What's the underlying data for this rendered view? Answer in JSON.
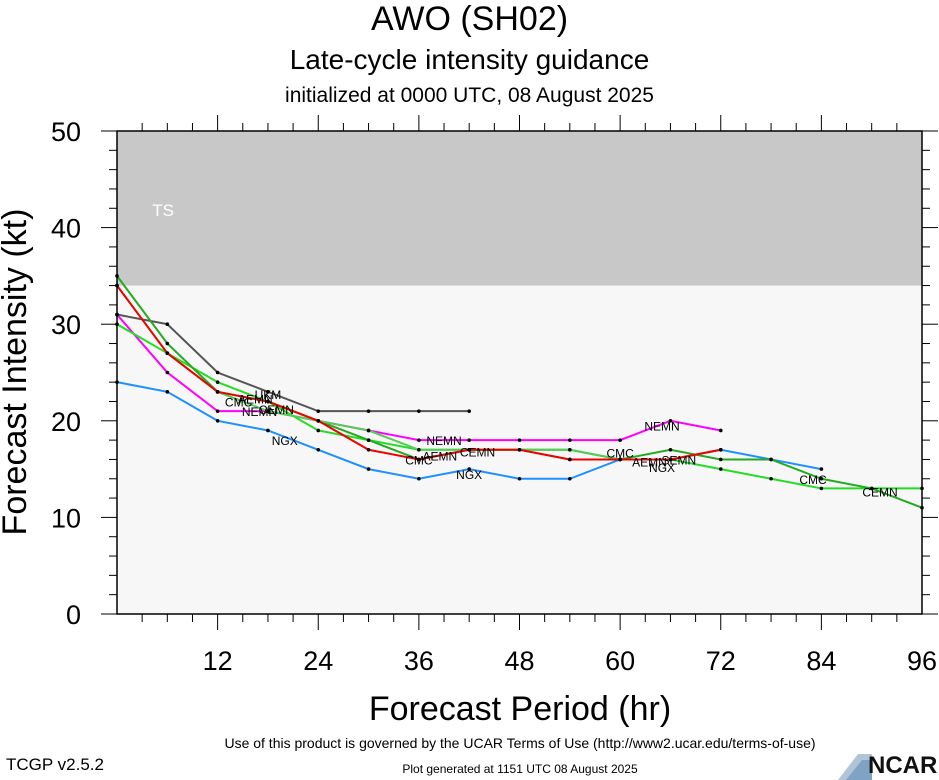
{
  "header": {
    "title": "AWO (SH02)",
    "subtitle": "Late-cycle intensity guidance",
    "init": "initialized at 0000 UTC, 08 August 2025"
  },
  "footer": {
    "terms": "Use of this product is governed by the UCAR Terms of Use (http://www2.ucar.edu/terms-of-use)",
    "version": "TCGP v2.5.2",
    "generated": "Plot generated at 1151 UTC   08 August 2025",
    "logo": "NCAR"
  },
  "colors": {
    "ts_band": "#c8c8c8",
    "plot_bg": "#f7f7f7",
    "NEMN": "#ff00ff",
    "NGX": "#1e90ff",
    "UKM": "#555555",
    "CEMN": "#22dd22",
    "CMC": "#22aa22",
    "AEMN": "#55cc55",
    "RED": "#ee0000"
  },
  "chart_data": {
    "type": "line",
    "xlabel": "Forecast Period (hr)",
    "ylabel": "Forecast Intensity (kt)",
    "xlim": [
      0,
      96
    ],
    "ylim": [
      0,
      50
    ],
    "xticks": [
      12,
      24,
      36,
      48,
      60,
      72,
      84,
      96
    ],
    "yticks": [
      0,
      10,
      20,
      30,
      40,
      50
    ],
    "category_bands": [
      {
        "label": "TS",
        "from": 34,
        "to": 50
      }
    ],
    "series": [
      {
        "name": "NEMN",
        "color": "#ff00ff",
        "x": [
          0,
          6,
          12,
          18,
          24,
          30,
          36,
          42,
          48,
          54,
          60,
          66,
          72
        ],
        "y": [
          31,
          25,
          21,
          21,
          20,
          19,
          18,
          18,
          18,
          18,
          18,
          20,
          19
        ],
        "labels": [
          {
            "text": "NEMN",
            "x": 17,
            "y": 21
          },
          {
            "text": "NEMN",
            "x": 39,
            "y": 18
          },
          {
            "text": "NEMN",
            "x": 65,
            "y": 19.5
          }
        ]
      },
      {
        "name": "NGX",
        "color": "#1e90ff",
        "x": [
          0,
          6,
          12,
          18,
          24,
          30,
          36,
          42,
          48,
          54,
          60,
          66,
          72,
          78,
          84
        ],
        "y": [
          24,
          23,
          20,
          19,
          17,
          15,
          14,
          15,
          14,
          14,
          16,
          16,
          17,
          16,
          15
        ],
        "labels": [
          {
            "text": "NGX",
            "x": 20,
            "y": 18
          },
          {
            "text": "NGX",
            "x": 42,
            "y": 14.5
          },
          {
            "text": "NGX",
            "x": 65,
            "y": 15.2
          }
        ]
      },
      {
        "name": "UKM",
        "color": "#555555",
        "x": [
          0,
          6,
          12,
          18,
          24,
          30,
          36,
          42
        ],
        "y": [
          31,
          30,
          25,
          23,
          21,
          21,
          21,
          21
        ],
        "labels": [
          {
            "text": "UKM",
            "x": 18,
            "y": 22.8
          }
        ]
      },
      {
        "name": "CEMN",
        "color": "#22dd22",
        "x": [
          0,
          6,
          12,
          18,
          24,
          30,
          36,
          42,
          48,
          54,
          60,
          66,
          72,
          78,
          84,
          90,
          96
        ],
        "y": [
          30,
          27,
          24,
          22,
          19,
          18,
          17,
          17,
          17,
          16,
          16,
          16,
          15,
          14,
          13,
          13,
          13
        ],
        "labels": [
          {
            "text": "CEMN",
            "x": 19,
            "y": 21.2
          },
          {
            "text": "CEMN",
            "x": 43,
            "y": 16.8
          },
          {
            "text": "CEMN",
            "x": 91,
            "y": 12.7
          }
        ]
      },
      {
        "name": "CMC",
        "color": "#22aa22",
        "x": [
          0,
          6,
          12,
          18,
          24,
          30,
          36,
          42,
          48,
          54,
          60,
          66,
          72,
          78,
          84,
          90,
          96
        ],
        "y": [
          35,
          28,
          23,
          22,
          20,
          18,
          16,
          17,
          17,
          17,
          16,
          17,
          16,
          16,
          14,
          13,
          11
        ],
        "labels": [
          {
            "text": "CMC",
            "x": 14.5,
            "y": 22.0
          },
          {
            "text": "CMC",
            "x": 36,
            "y": 16.0
          },
          {
            "text": "CMC",
            "x": 60,
            "y": 16.7
          },
          {
            "text": "CMC",
            "x": 83,
            "y": 14.0
          }
        ]
      },
      {
        "name": "AEMN",
        "color": "#55cc55",
        "x": [
          0,
          6,
          12,
          18,
          24,
          30,
          36,
          42,
          48,
          54,
          60,
          66,
          72
        ],
        "y": [
          34,
          27,
          23,
          21,
          20,
          19,
          17,
          17,
          17,
          17,
          16,
          16,
          17
        ],
        "labels": [
          {
            "text": "AEMN",
            "x": 16.5,
            "y": 22.3
          },
          {
            "text": "AEMN",
            "x": 38.5,
            "y": 16.4
          },
          {
            "text": "AEMN",
            "x": 63.5,
            "y": 15.8
          }
        ]
      },
      {
        "name": "SEMN",
        "color": "#ee0000",
        "x": [
          0,
          6,
          12,
          18,
          24,
          30,
          36,
          42,
          48,
          54,
          60,
          66,
          72
        ],
        "y": [
          34,
          27,
          23,
          22,
          20,
          17,
          16,
          17,
          17,
          16,
          16,
          16,
          17
        ],
        "labels": [
          {
            "text": "SEMN",
            "x": 67,
            "y": 16.0
          }
        ]
      }
    ]
  }
}
